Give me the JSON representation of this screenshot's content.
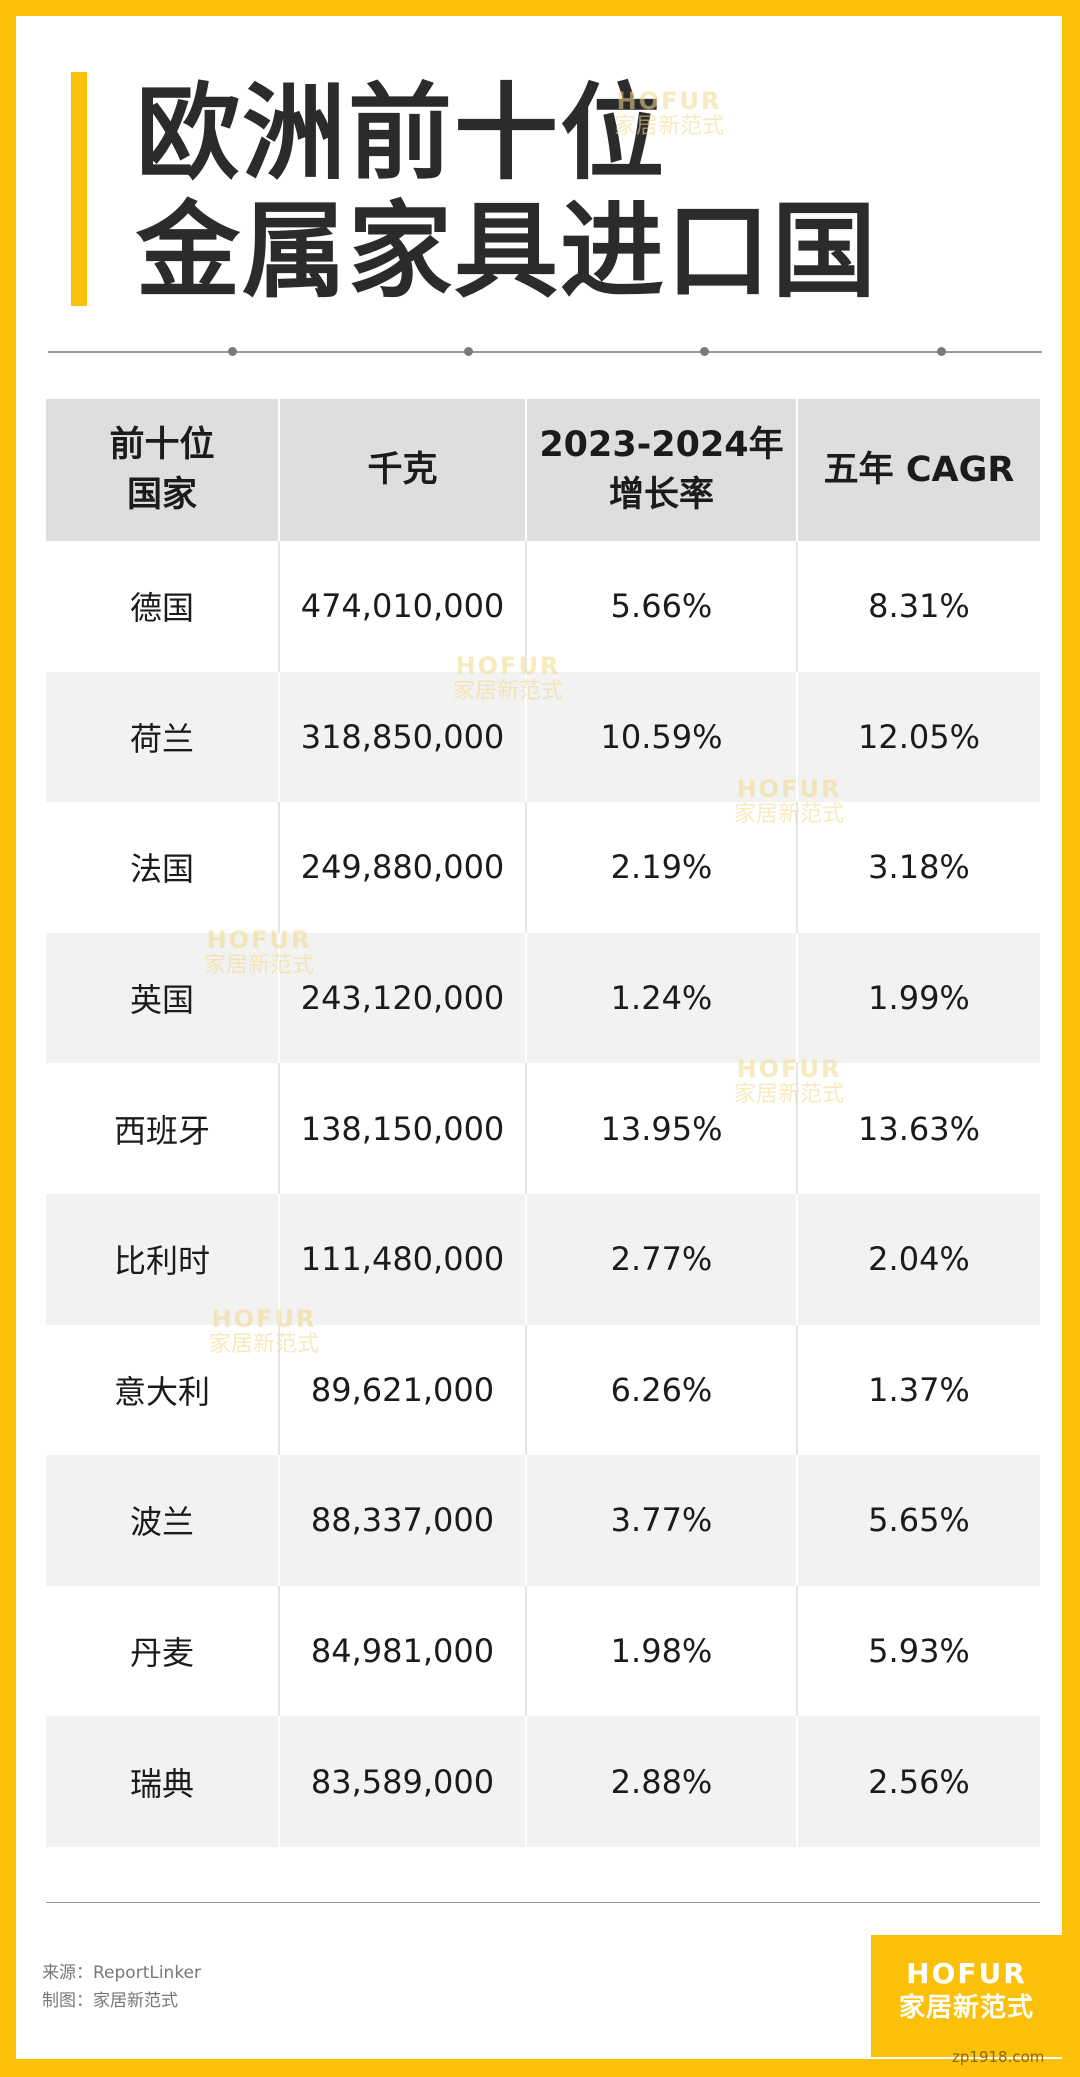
{
  "title": {
    "line1": "欧洲前十位",
    "line2": "金属家具进口国"
  },
  "table": {
    "headers": [
      {
        "lines": [
          "前十位",
          "国家"
        ]
      },
      {
        "lines": [
          "千克"
        ]
      },
      {
        "lines": [
          "2023-2024年",
          "增长率"
        ]
      },
      {
        "lines": [
          "五年 CAGR"
        ]
      }
    ],
    "rows": [
      {
        "country": "德国",
        "kg": "474,010,000",
        "growth": "5.66%",
        "cagr": "8.31%"
      },
      {
        "country": "荷兰",
        "kg": "318,850,000",
        "growth": "10.59%",
        "cagr": "12.05%"
      },
      {
        "country": "法国",
        "kg": "249,880,000",
        "growth": "2.19%",
        "cagr": "3.18%"
      },
      {
        "country": "英国",
        "kg": "243,120,000",
        "growth": "1.24%",
        "cagr": "1.99%"
      },
      {
        "country": "西班牙",
        "kg": "138,150,000",
        "growth": "13.95%",
        "cagr": "13.63%"
      },
      {
        "country": "比利时",
        "kg": "111,480,000",
        "growth": "2.77%",
        "cagr": "2.04%"
      },
      {
        "country": "意大利",
        "kg": "89,621,000",
        "growth": "6.26%",
        "cagr": "1.37%"
      },
      {
        "country": "波兰",
        "kg": "88,337,000",
        "growth": "3.77%",
        "cagr": "5.65%"
      },
      {
        "country": "丹麦",
        "kg": "84,981,000",
        "growth": "1.98%",
        "cagr": "5.93%"
      },
      {
        "country": "瑞典",
        "kg": "83,589,000",
        "growth": "2.88%",
        "cagr": "2.56%"
      }
    ]
  },
  "credits": {
    "source": "来源：ReportLinker",
    "producer": "制图：家居新范式"
  },
  "logo": {
    "line1": "HOFUR",
    "line2": "家居新范式"
  },
  "watermark": {
    "line1": "HOFUR",
    "line2": "家居新范式"
  },
  "footer_url": "zp1918.com",
  "colors": {
    "accent": "#FBC10A",
    "header_bg": "#dedede",
    "stripe_bg": "#f2f2f2",
    "text": "#1b1b1b"
  }
}
